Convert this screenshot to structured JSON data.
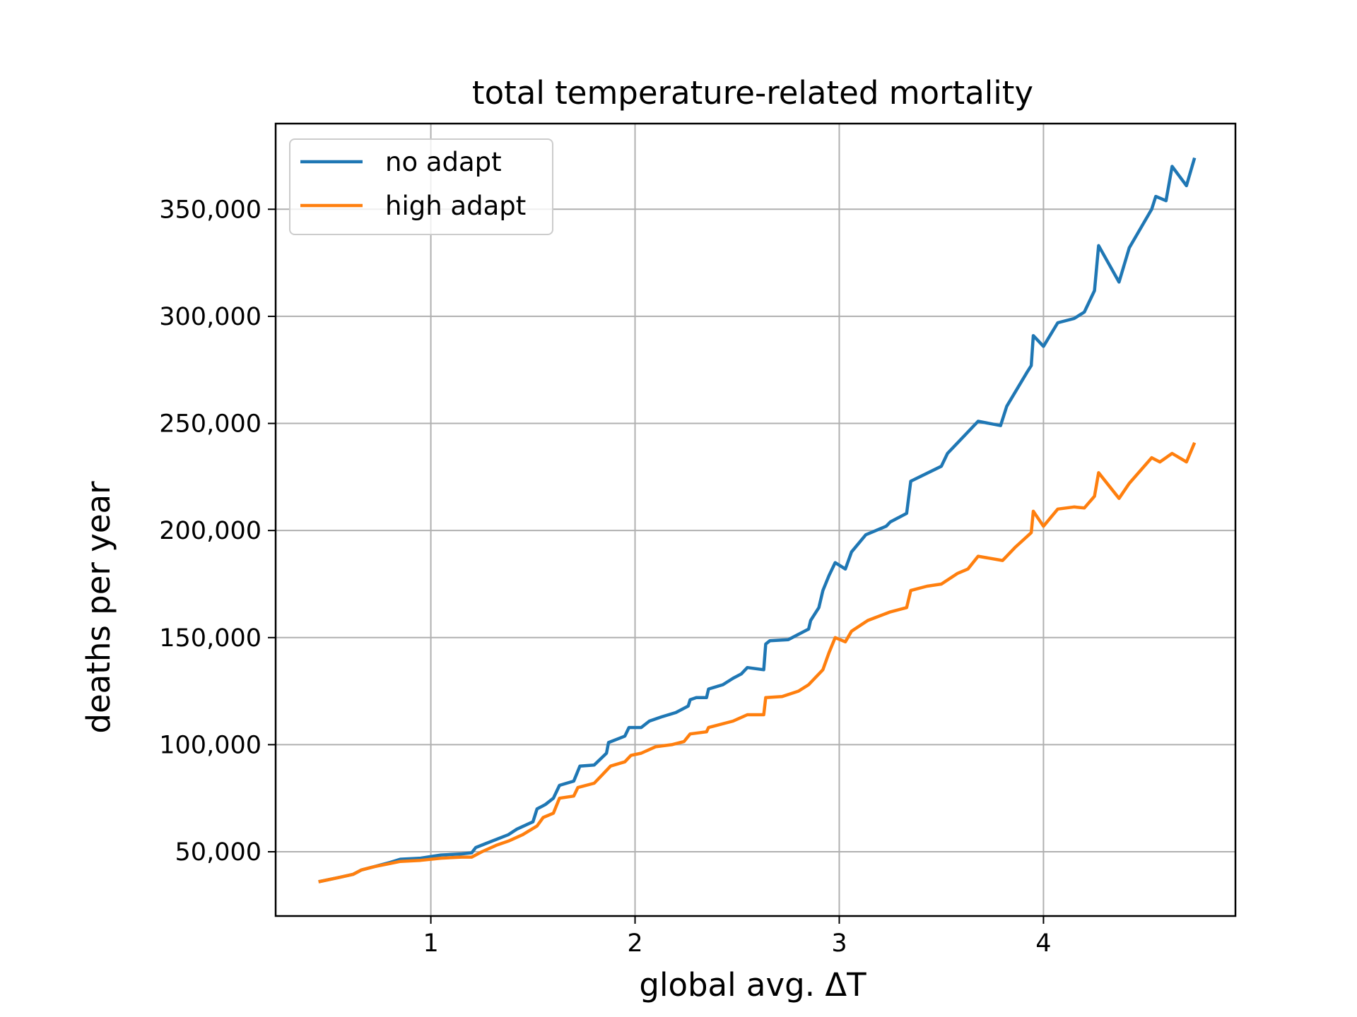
{
  "chart_data": {
    "type": "line",
    "title": "total temperature-related mortality",
    "xlabel": "global avg. ΔT",
    "ylabel": "deaths per year",
    "xlim": [
      0.24,
      4.94
    ],
    "ylim": [
      20000,
      390000
    ],
    "xticks": [
      1,
      2,
      3,
      4
    ],
    "xtick_labels": [
      "1",
      "2",
      "3",
      "4"
    ],
    "yticks": [
      50000,
      100000,
      150000,
      200000,
      250000,
      300000,
      350000
    ],
    "ytick_labels": [
      "50,000",
      "100,000",
      "150,000",
      "200,000",
      "250,000",
      "300,000",
      "350,000"
    ],
    "grid": true,
    "legend_position": "top-left",
    "series": [
      {
        "name": "no adapt",
        "color": "#1f77b4",
        "points": [
          [
            0.45,
            36000
          ],
          [
            0.55,
            38000
          ],
          [
            0.62,
            39500
          ],
          [
            0.66,
            41500
          ],
          [
            0.72,
            43000
          ],
          [
            0.8,
            45000
          ],
          [
            0.85,
            46500
          ],
          [
            0.95,
            47000
          ],
          [
            1.05,
            48500
          ],
          [
            1.15,
            49000
          ],
          [
            1.2,
            49500
          ],
          [
            1.22,
            52000
          ],
          [
            1.3,
            55000
          ],
          [
            1.38,
            58000
          ],
          [
            1.42,
            60500
          ],
          [
            1.5,
            64000
          ],
          [
            1.52,
            70000
          ],
          [
            1.56,
            72000
          ],
          [
            1.6,
            75000
          ],
          [
            1.63,
            81000
          ],
          [
            1.7,
            83000
          ],
          [
            1.73,
            90000
          ],
          [
            1.8,
            90500
          ],
          [
            1.86,
            96000
          ],
          [
            1.87,
            101000
          ],
          [
            1.95,
            104000
          ],
          [
            1.97,
            108000
          ],
          [
            2.03,
            108000
          ],
          [
            2.07,
            111000
          ],
          [
            2.13,
            113000
          ],
          [
            2.2,
            115000
          ],
          [
            2.26,
            118000
          ],
          [
            2.27,
            121000
          ],
          [
            2.3,
            122000
          ],
          [
            2.35,
            122000
          ],
          [
            2.36,
            126000
          ],
          [
            2.43,
            128000
          ],
          [
            2.48,
            131000
          ],
          [
            2.52,
            133000
          ],
          [
            2.55,
            136000
          ],
          [
            2.63,
            135000
          ],
          [
            2.64,
            147000
          ],
          [
            2.66,
            148500
          ],
          [
            2.75,
            149000
          ],
          [
            2.85,
            154000
          ],
          [
            2.86,
            158000
          ],
          [
            2.9,
            164000
          ],
          [
            2.92,
            172000
          ],
          [
            2.95,
            179000
          ],
          [
            2.98,
            185000
          ],
          [
            3.03,
            182000
          ],
          [
            3.06,
            190000
          ],
          [
            3.13,
            198000
          ],
          [
            3.23,
            202000
          ],
          [
            3.25,
            204000
          ],
          [
            3.33,
            208000
          ],
          [
            3.35,
            223000
          ],
          [
            3.5,
            230000
          ],
          [
            3.53,
            236000
          ],
          [
            3.6,
            243000
          ],
          [
            3.68,
            251000
          ],
          [
            3.79,
            249000
          ],
          [
            3.82,
            258000
          ],
          [
            3.92,
            274000
          ],
          [
            3.94,
            277000
          ],
          [
            3.95,
            291000
          ],
          [
            4.0,
            286000
          ],
          [
            4.07,
            297000
          ],
          [
            4.15,
            299000
          ],
          [
            4.2,
            302000
          ],
          [
            4.25,
            312000
          ],
          [
            4.27,
            333000
          ],
          [
            4.37,
            316000
          ],
          [
            4.42,
            332000
          ],
          [
            4.53,
            350000
          ],
          [
            4.55,
            356000
          ],
          [
            4.6,
            354000
          ],
          [
            4.63,
            370000
          ],
          [
            4.7,
            361000
          ],
          [
            4.74,
            374000
          ]
        ]
      },
      {
        "name": "high adapt",
        "color": "#ff7f0e",
        "points": [
          [
            0.45,
            36000
          ],
          [
            0.55,
            38000
          ],
          [
            0.62,
            39500
          ],
          [
            0.66,
            41500
          ],
          [
            0.72,
            43000
          ],
          [
            0.8,
            44500
          ],
          [
            0.85,
            45500
          ],
          [
            0.95,
            46000
          ],
          [
            1.05,
            47000
          ],
          [
            1.15,
            47500
          ],
          [
            1.2,
            47500
          ],
          [
            1.25,
            50000
          ],
          [
            1.32,
            53000
          ],
          [
            1.38,
            55000
          ],
          [
            1.45,
            58000
          ],
          [
            1.52,
            62000
          ],
          [
            1.55,
            66000
          ],
          [
            1.6,
            68000
          ],
          [
            1.63,
            75000
          ],
          [
            1.7,
            76000
          ],
          [
            1.72,
            80000
          ],
          [
            1.8,
            82000
          ],
          [
            1.84,
            86000
          ],
          [
            1.88,
            90000
          ],
          [
            1.95,
            92000
          ],
          [
            1.98,
            95000
          ],
          [
            2.03,
            96000
          ],
          [
            2.1,
            99000
          ],
          [
            2.18,
            100000
          ],
          [
            2.24,
            101500
          ],
          [
            2.27,
            105000
          ],
          [
            2.35,
            106000
          ],
          [
            2.36,
            108000
          ],
          [
            2.48,
            111000
          ],
          [
            2.55,
            114000
          ],
          [
            2.63,
            114000
          ],
          [
            2.64,
            122000
          ],
          [
            2.72,
            122500
          ],
          [
            2.8,
            125000
          ],
          [
            2.85,
            128000
          ],
          [
            2.92,
            135000
          ],
          [
            2.95,
            143000
          ],
          [
            2.98,
            150000
          ],
          [
            3.03,
            148000
          ],
          [
            3.06,
            153000
          ],
          [
            3.14,
            158000
          ],
          [
            3.25,
            162000
          ],
          [
            3.33,
            164000
          ],
          [
            3.35,
            172000
          ],
          [
            3.43,
            174000
          ],
          [
            3.5,
            175000
          ],
          [
            3.58,
            180000
          ],
          [
            3.63,
            182000
          ],
          [
            3.68,
            188000
          ],
          [
            3.8,
            186000
          ],
          [
            3.86,
            192000
          ],
          [
            3.94,
            199000
          ],
          [
            3.95,
            209000
          ],
          [
            4.0,
            202000
          ],
          [
            4.07,
            210000
          ],
          [
            4.15,
            211000
          ],
          [
            4.2,
            210500
          ],
          [
            4.25,
            216000
          ],
          [
            4.27,
            227000
          ],
          [
            4.37,
            215000
          ],
          [
            4.42,
            222000
          ],
          [
            4.53,
            234000
          ],
          [
            4.57,
            232000
          ],
          [
            4.63,
            236000
          ],
          [
            4.7,
            232000
          ],
          [
            4.74,
            241000
          ]
        ]
      }
    ]
  }
}
